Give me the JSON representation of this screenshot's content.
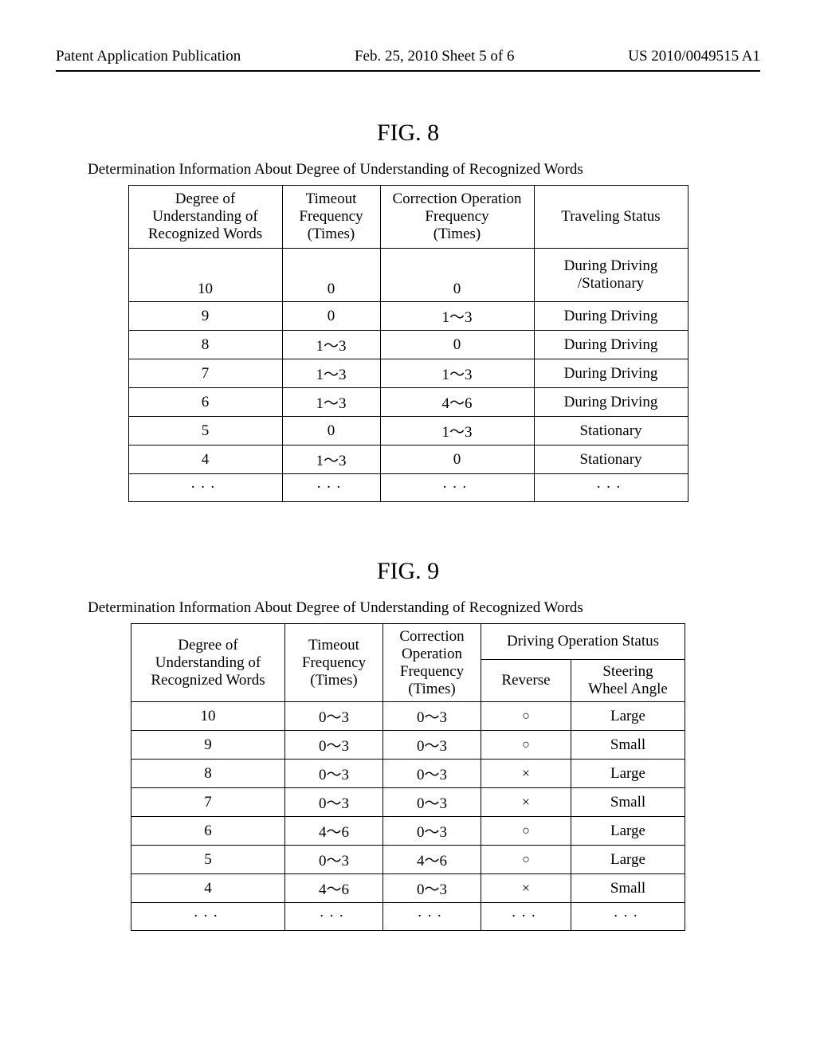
{
  "header": {
    "left": "Patent Application Publication",
    "center": "Feb. 25, 2010  Sheet 5 of 6",
    "right": "US 2010/0049515 A1"
  },
  "fig8": {
    "title": "FIG. 8",
    "caption": "Determination Information About Degree of Understanding of Recognized Words",
    "columns": {
      "c1": "Degree of\nUnderstanding of\nRecognized Words",
      "c2": "Timeout\nFrequency\n(Times)",
      "c3": "Correction Operation\nFrequency\n(Times)",
      "c4": "Traveling Status"
    },
    "rows": [
      {
        "v1": "10",
        "v2": "0",
        "v3": "0",
        "v4": "During Driving\n/Stationary"
      },
      {
        "v1": "9",
        "v2": "0",
        "v3": "1～3",
        "v4": "During Driving"
      },
      {
        "v1": "8",
        "v2": "1～3",
        "v3": "0",
        "v4": "During Driving"
      },
      {
        "v1": "7",
        "v2": "1～3",
        "v3": "1～3",
        "v4": "During Driving"
      },
      {
        "v1": "6",
        "v2": "1～3",
        "v3": "4～6",
        "v4": "During Driving"
      },
      {
        "v1": "5",
        "v2": "0",
        "v3": "1～3",
        "v4": "Stationary"
      },
      {
        "v1": "4",
        "v2": "1～3",
        "v3": "0",
        "v4": "Stationary"
      },
      {
        "v1": "···",
        "v2": "···",
        "v3": "···",
        "v4": "···"
      }
    ]
  },
  "fig9": {
    "title": "FIG. 9",
    "caption": "Determination Information About Degree of Understanding of Recognized Words",
    "columns": {
      "c1": "Degree of\nUnderstanding of\nRecognized Words",
      "c2": "Timeout\nFrequency\n(Times)",
      "c3": "Correction\nOperation\nFrequency\n(Times)",
      "c4": "Driving Operation Status",
      "c4a": "Reverse",
      "c4b": "Steering\nWheel Angle"
    },
    "rows": [
      {
        "v1": "10",
        "v2": "0～3",
        "v3": "0～3",
        "v4": "○",
        "v5": "Large"
      },
      {
        "v1": "9",
        "v2": "0～3",
        "v3": "0～3",
        "v4": "○",
        "v5": "Small"
      },
      {
        "v1": "8",
        "v2": "0～3",
        "v3": "0～3",
        "v4": "×",
        "v5": "Large"
      },
      {
        "v1": "7",
        "v2": "0～3",
        "v3": "0～3",
        "v4": "×",
        "v5": "Small"
      },
      {
        "v1": "6",
        "v2": "4～6",
        "v3": "0～3",
        "v4": "○",
        "v5": "Large"
      },
      {
        "v1": "5",
        "v2": "0～3",
        "v3": "4～6",
        "v4": "○",
        "v5": "Large"
      },
      {
        "v1": "4",
        "v2": "4～6",
        "v3": "0～3",
        "v4": "×",
        "v5": "Small"
      },
      {
        "v1": "···",
        "v2": "···",
        "v3": "···",
        "v4": "···",
        "v5": "···"
      }
    ]
  }
}
